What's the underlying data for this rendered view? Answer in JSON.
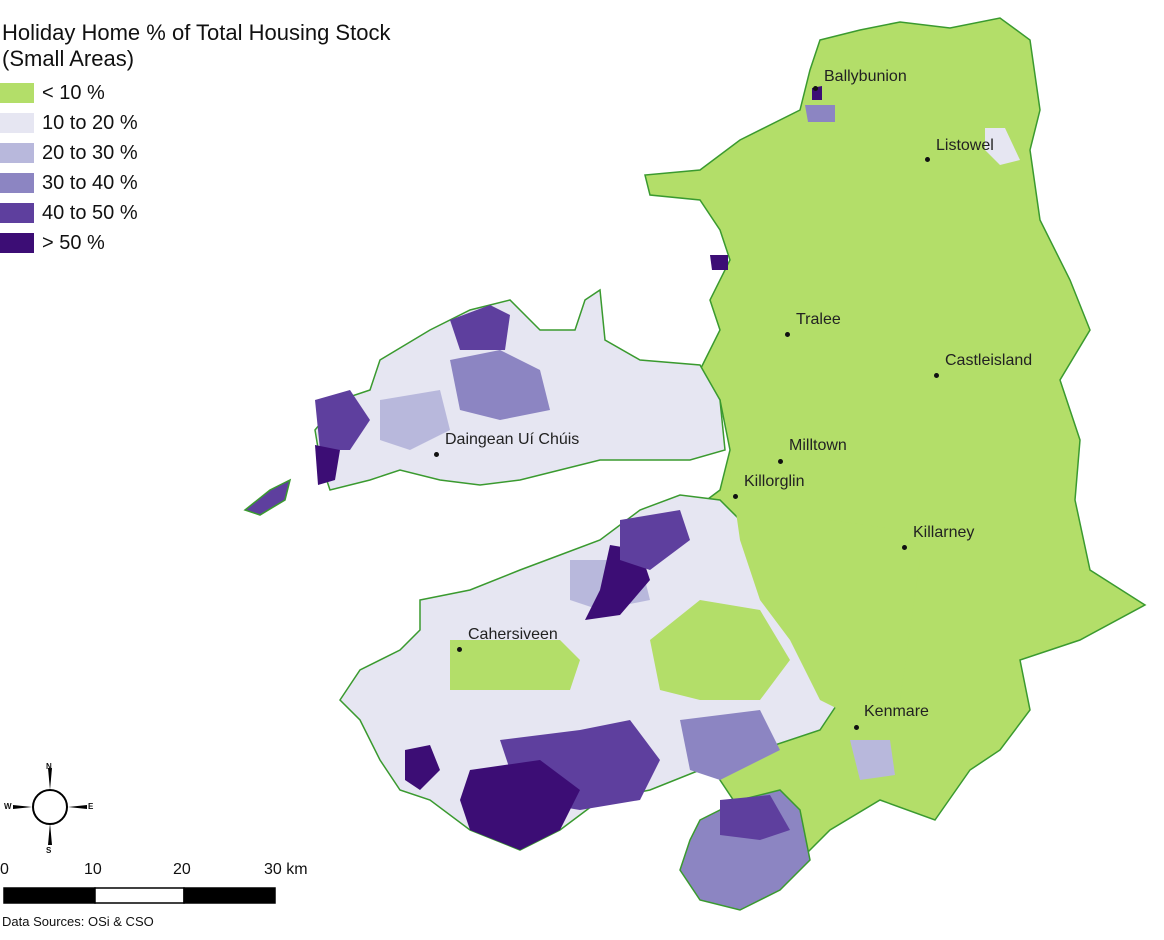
{
  "map": {
    "title_line1": "Holiday Home % of Total Housing Stock",
    "title_line2": "(Small Areas)",
    "legend": [
      {
        "label": "< 10 %",
        "color": "#b3de69"
      },
      {
        "label": "10 to 20 %",
        "color": "#e6e6f2"
      },
      {
        "label": "20 to 30 %",
        "color": "#b8b8dc"
      },
      {
        "label": "30 to 40 %",
        "color": "#8c85c2"
      },
      {
        "label": "40 to 50 %",
        "color": "#5e3f9e"
      },
      {
        "label": "> 50 %",
        "color": "#3c0d75"
      }
    ],
    "towns": [
      {
        "name": "Ballybunion"
      },
      {
        "name": "Listowel"
      },
      {
        "name": "Tralee"
      },
      {
        "name": "Castleisland"
      },
      {
        "name": "Daingean Uí Chúis"
      },
      {
        "name": "Milltown"
      },
      {
        "name": "Killorglin"
      },
      {
        "name": "Killarney"
      },
      {
        "name": "Cahersiveen"
      },
      {
        "name": "Kenmare"
      }
    ],
    "compass": {
      "n": "N",
      "s": "S",
      "e": "E",
      "w": "W"
    },
    "scale": {
      "ticks": [
        "0",
        "10",
        "20",
        "30 km"
      ]
    },
    "source": "Data Sources: OSi & CSO",
    "coast_color": "#3a9a2f"
  }
}
